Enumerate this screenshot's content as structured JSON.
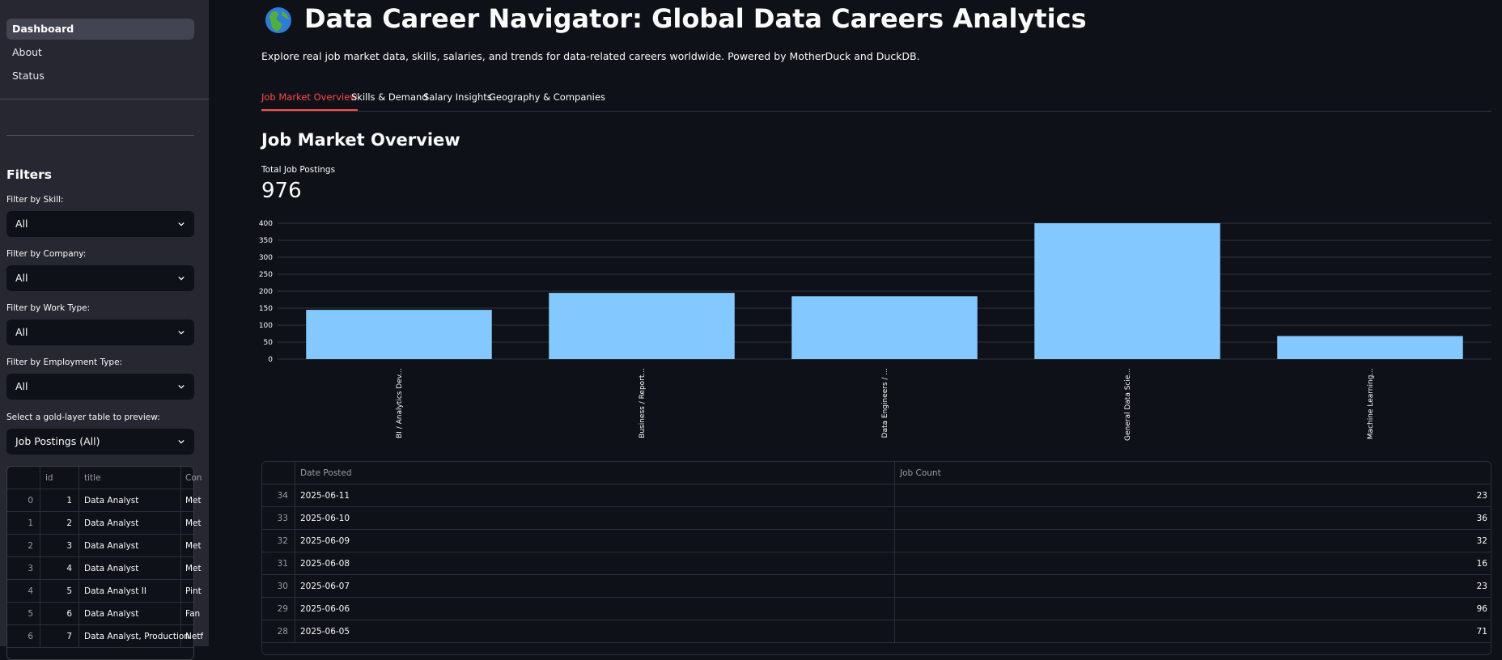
{
  "sidebar": {
    "nav": [
      "Dashboard",
      "About",
      "Status"
    ],
    "filters_heading": "Filters",
    "filters": [
      {
        "label": "Filter by Skill:",
        "value": "All"
      },
      {
        "label": "Filter by Company:",
        "value": "All"
      },
      {
        "label": "Filter by Work Type:",
        "value": "All"
      },
      {
        "label": "Filter by Employment Type:",
        "value": "All"
      }
    ],
    "preview": {
      "label": "Select a gold-layer table to preview:",
      "value": "Job Postings (All)"
    },
    "table": {
      "columns": [
        "",
        "id",
        "title",
        "Con"
      ],
      "rows": [
        [
          "0",
          "1",
          "Data Analyst",
          "Met"
        ],
        [
          "1",
          "2",
          "Data Analyst",
          "Met"
        ],
        [
          "2",
          "3",
          "Data Analyst",
          "Met"
        ],
        [
          "3",
          "4",
          "Data Analyst",
          "Met"
        ],
        [
          "4",
          "5",
          "Data Analyst II",
          "Pint"
        ],
        [
          "5",
          "6",
          "Data Analyst",
          "Fan"
        ],
        [
          "6",
          "7",
          "Data Analyst, Production",
          "Netf"
        ]
      ]
    }
  },
  "header": {
    "icon": "globe-icon",
    "title": "Data Career Navigator: Global Data Careers Analytics",
    "subtitle": "Explore real job market data, skills, salaries, and trends for data-related careers worldwide. Powered by MotherDuck and DuckDB."
  },
  "tabs": [
    "Job Market Overview",
    "Skills & Demand",
    "Salary Insights",
    "Geography & Companies"
  ],
  "active_tab": 0,
  "section_heading": "Job Market Overview",
  "metric": {
    "label": "Total Job Postings",
    "value": "976"
  },
  "chart_data": {
    "type": "bar",
    "categories": [
      "BI / Analytics Dev...",
      "Business / Report...",
      "Data Engineers / ...",
      "General Data Scie...",
      "Machine Learning..."
    ],
    "values": [
      145,
      195,
      185,
      400,
      68
    ],
    "yticks": [
      0,
      50,
      100,
      150,
      200,
      250,
      300,
      350,
      400
    ],
    "ylim": [
      0,
      400
    ],
    "grid": true,
    "bar_color": "#83c9ff"
  },
  "table": {
    "columns": [
      "",
      "Date Posted",
      "Job Count"
    ],
    "rows": [
      [
        "34",
        "2025-06-11",
        "23"
      ],
      [
        "33",
        "2025-06-10",
        "36"
      ],
      [
        "32",
        "2025-06-09",
        "32"
      ],
      [
        "31",
        "2025-06-08",
        "16"
      ],
      [
        "30",
        "2025-06-07",
        "23"
      ],
      [
        "29",
        "2025-06-06",
        "96"
      ],
      [
        "28",
        "2025-06-05",
        "71"
      ]
    ]
  },
  "colors": {
    "accent": "#ff4b4b",
    "bar": "#83c9ff",
    "sidebar_bg": "#262730",
    "page_bg": "#0e1117"
  }
}
